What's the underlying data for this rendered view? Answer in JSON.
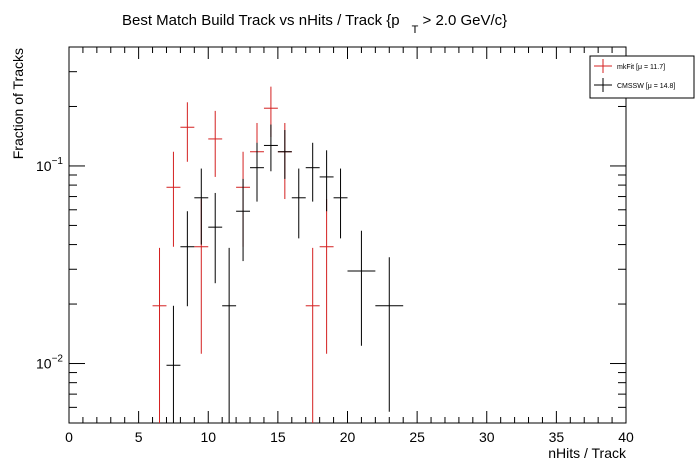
{
  "chart_data": {
    "type": "scatter",
    "title_main": "Best Match Build Track vs nHits / Track {p",
    "title_sub": "T",
    "title_tail": " > 2.0 GeV/c}",
    "xlabel": "nHits / Track",
    "ylabel": "Fraction of Tracks",
    "xlim": [
      0,
      40
    ],
    "ylim": [
      0.005,
      0.4
    ],
    "yscale": "log",
    "xticks": [
      0,
      5,
      10,
      15,
      20,
      25,
      30,
      35,
      40
    ],
    "xtick_labels": [
      "0",
      "5",
      "10",
      "15",
      "20",
      "25",
      "30",
      "35",
      "40"
    ],
    "yticks": [
      0.01,
      0.1
    ],
    "ytick_labels": [
      {
        "base": "10",
        "exp": "−2"
      },
      {
        "base": "10",
        "exp": "−1"
      }
    ],
    "legend_position": "top-right",
    "series": [
      {
        "name": "mkFit",
        "legend_label": "mkFit  [μ = 11.7]",
        "color": "#d42020",
        "points": [
          {
            "x": 6.5,
            "y": 0.0196,
            "lo": 0.004,
            "hi": 0.0385
          },
          {
            "x": 7.5,
            "y": 0.078,
            "lo": 0.039,
            "hi": 0.118
          },
          {
            "x": 8.5,
            "y": 0.157,
            "lo": 0.105,
            "hi": 0.21
          },
          {
            "x": 9.5,
            "y": 0.039,
            "lo": 0.0112,
            "hi": 0.068
          },
          {
            "x": 10.5,
            "y": 0.137,
            "lo": 0.088,
            "hi": 0.19
          },
          {
            "x": 12.5,
            "y": 0.078,
            "lo": 0.039,
            "hi": 0.118
          },
          {
            "x": 13.5,
            "y": 0.118,
            "lo": 0.068,
            "hi": 0.165
          },
          {
            "x": 14.5,
            "y": 0.196,
            "lo": 0.14,
            "hi": 0.252
          },
          {
            "x": 15.5,
            "y": 0.118,
            "lo": 0.068,
            "hi": 0.165
          },
          {
            "x": 17.5,
            "y": 0.0196,
            "lo": 0.004,
            "hi": 0.0385
          },
          {
            "x": 18.5,
            "y": 0.039,
            "lo": 0.0112,
            "hi": 0.068
          }
        ]
      },
      {
        "name": "CMSSW",
        "legend_label": "CMSSW  [μ = 14.8]",
        "color": "#000000",
        "points": [
          {
            "x": 7.5,
            "y": 0.0098,
            "lo": 0.004,
            "hi": 0.0196
          },
          {
            "x": 8.5,
            "y": 0.039,
            "lo": 0.0195,
            "hi": 0.059
          },
          {
            "x": 9.5,
            "y": 0.069,
            "lo": 0.04,
            "hi": 0.097
          },
          {
            "x": 10.5,
            "y": 0.049,
            "lo": 0.0255,
            "hi": 0.073
          },
          {
            "x": 11.5,
            "y": 0.0196,
            "lo": 0.004,
            "hi": 0.0385
          },
          {
            "x": 12.5,
            "y": 0.059,
            "lo": 0.033,
            "hi": 0.086
          },
          {
            "x": 13.5,
            "y": 0.098,
            "lo": 0.066,
            "hi": 0.131
          },
          {
            "x": 14.5,
            "y": 0.127,
            "lo": 0.094,
            "hi": 0.162
          },
          {
            "x": 15.5,
            "y": 0.118,
            "lo": 0.086,
            "hi": 0.152
          },
          {
            "x": 16.5,
            "y": 0.069,
            "lo": 0.043,
            "hi": 0.097
          },
          {
            "x": 17.5,
            "y": 0.098,
            "lo": 0.066,
            "hi": 0.131
          },
          {
            "x": 18.5,
            "y": 0.088,
            "lo": 0.059,
            "hi": 0.12
          },
          {
            "x": 19.5,
            "y": 0.069,
            "lo": 0.043,
            "hi": 0.097
          },
          {
            "x": 21,
            "xhalf": 1,
            "y": 0.0294,
            "lo": 0.0123,
            "hi": 0.047
          },
          {
            "x": 23,
            "xhalf": 1,
            "y": 0.0196,
            "lo": 0.0057,
            "hi": 0.0345
          }
        ]
      }
    ]
  }
}
